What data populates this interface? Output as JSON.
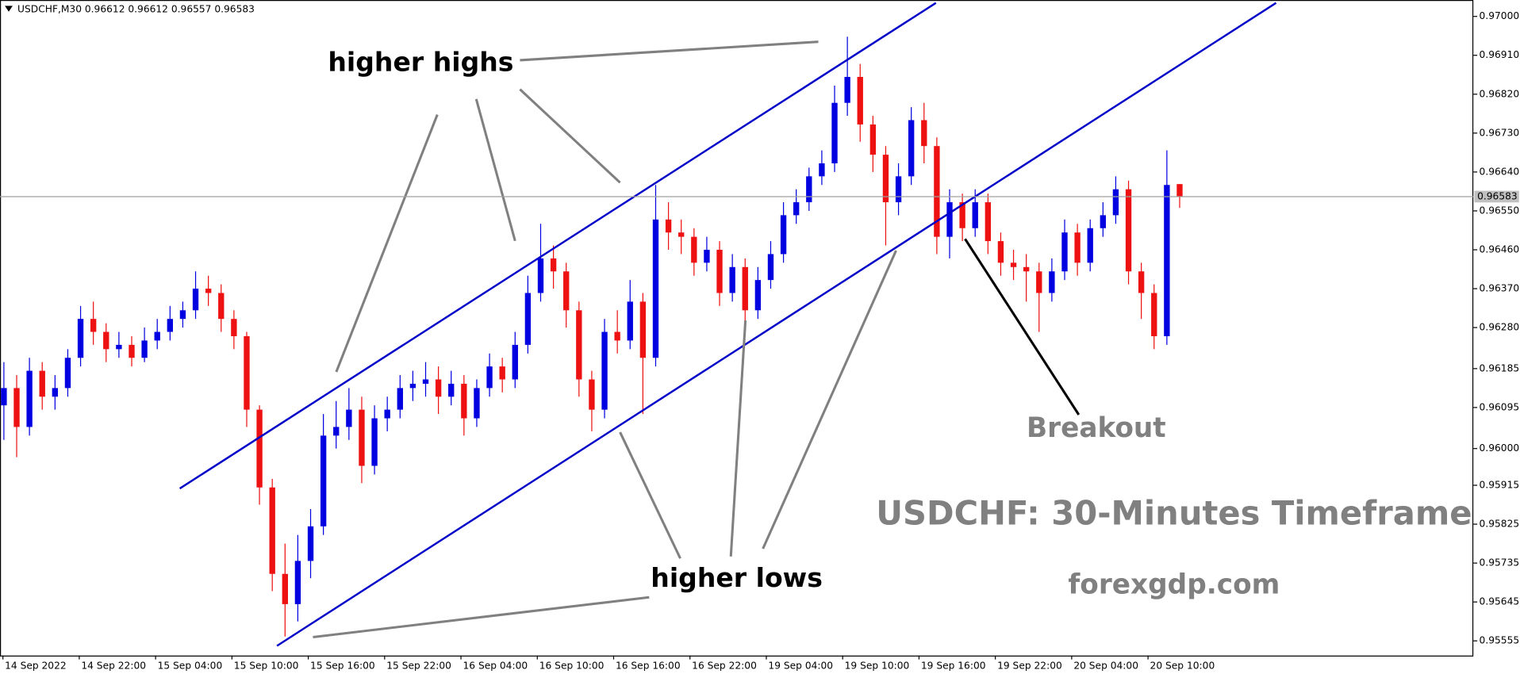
{
  "chart_data": {
    "type": "candlestick",
    "title": "USDCHF,M30  0.96612 0.96612 0.96557 0.96583",
    "up_color": "#0000e0",
    "down_color": "#ee1111",
    "ylim": [
      0.95521,
      0.97038
    ],
    "yticks": [
      {
        "value": 0.97,
        "label": "0.97000"
      },
      {
        "value": 0.9691,
        "label": "0.96910"
      },
      {
        "value": 0.9682,
        "label": "0.96820"
      },
      {
        "value": 0.9673,
        "label": "0.96730"
      },
      {
        "value": 0.9664,
        "label": "0.96640"
      },
      {
        "value": 0.9655,
        "label": "0.96550"
      },
      {
        "value": 0.9646,
        "label": "0.96460"
      },
      {
        "value": 0.9637,
        "label": "0.96370"
      },
      {
        "value": 0.9628,
        "label": "0.96280"
      },
      {
        "value": 0.96185,
        "label": "0.96185"
      },
      {
        "value": 0.96095,
        "label": "0.96095"
      },
      {
        "value": 0.96,
        "label": "0.96000"
      },
      {
        "value": 0.95915,
        "label": "0.95915"
      },
      {
        "value": 0.95825,
        "label": "0.95825"
      },
      {
        "value": 0.95735,
        "label": "0.95735"
      },
      {
        "value": 0.95645,
        "label": "0.95645"
      },
      {
        "value": 0.95555,
        "label": "0.95555"
      }
    ],
    "current_price": {
      "value": 0.96583,
      "label": "0.96583"
    },
    "xtick_labels": [
      "14 Sep 2022",
      "14 Sep 22:00",
      "15 Sep 04:00",
      "15 Sep 10:00",
      "15 Sep 16:00",
      "15 Sep 22:00",
      "16 Sep 04:00",
      "16 Sep 10:00",
      "16 Sep 16:00",
      "16 Sep 22:00",
      "19 Sep 04:00",
      "19 Sep 10:00",
      "19 Sep 16:00",
      "19 Sep 22:00",
      "20 Sep 04:00",
      "20 Sep 10:00"
    ],
    "candles": [
      [
        0.961,
        0.962,
        0.9602,
        0.9614
      ],
      [
        0.9614,
        0.9617,
        0.9598,
        0.9605
      ],
      [
        0.9605,
        0.9621,
        0.9603,
        0.9618
      ],
      [
        0.9618,
        0.962,
        0.9609,
        0.9612
      ],
      [
        0.9612,
        0.9617,
        0.9609,
        0.9614
      ],
      [
        0.9614,
        0.9623,
        0.9612,
        0.9621
      ],
      [
        0.9621,
        0.9633,
        0.9619,
        0.963
      ],
      [
        0.963,
        0.9634,
        0.9624,
        0.9627
      ],
      [
        0.9627,
        0.9629,
        0.962,
        0.9623
      ],
      [
        0.9623,
        0.9627,
        0.9621,
        0.9624
      ],
      [
        0.9624,
        0.9626,
        0.9619,
        0.9621
      ],
      [
        0.9621,
        0.9628,
        0.962,
        0.9625
      ],
      [
        0.9625,
        0.963,
        0.9623,
        0.9627
      ],
      [
        0.9627,
        0.9633,
        0.9625,
        0.963
      ],
      [
        0.963,
        0.9634,
        0.9628,
        0.9632
      ],
      [
        0.9632,
        0.9641,
        0.963,
        0.9637
      ],
      [
        0.9637,
        0.964,
        0.9633,
        0.9636
      ],
      [
        0.9636,
        0.9638,
        0.9627,
        0.963
      ],
      [
        0.963,
        0.9632,
        0.9623,
        0.9626
      ],
      [
        0.9626,
        0.9627,
        0.9605,
        0.9609
      ],
      [
        0.9609,
        0.961,
        0.9587,
        0.9591
      ],
      [
        0.9591,
        0.9593,
        0.9567,
        0.9571
      ],
      [
        0.9571,
        0.9578,
        0.95565,
        0.9564
      ],
      [
        0.9564,
        0.958,
        0.956,
        0.9574
      ],
      [
        0.9574,
        0.9586,
        0.957,
        0.9582
      ],
      [
        0.9582,
        0.9608,
        0.958,
        0.9603
      ],
      [
        0.9603,
        0.9611,
        0.96,
        0.9605
      ],
      [
        0.9605,
        0.9614,
        0.9602,
        0.9609
      ],
      [
        0.9609,
        0.9612,
        0.9592,
        0.9596
      ],
      [
        0.9596,
        0.961,
        0.9594,
        0.9607
      ],
      [
        0.9607,
        0.9612,
        0.9604,
        0.9609
      ],
      [
        0.9609,
        0.9617,
        0.9607,
        0.9614
      ],
      [
        0.9614,
        0.9618,
        0.9611,
        0.9615
      ],
      [
        0.9615,
        0.962,
        0.9612,
        0.9616
      ],
      [
        0.9616,
        0.9619,
        0.9608,
        0.9612
      ],
      [
        0.9612,
        0.9618,
        0.961,
        0.9615
      ],
      [
        0.9615,
        0.9617,
        0.9603,
        0.9607
      ],
      [
        0.9607,
        0.9616,
        0.9605,
        0.9614
      ],
      [
        0.9614,
        0.9622,
        0.9612,
        0.9619
      ],
      [
        0.9619,
        0.9621,
        0.9613,
        0.9616
      ],
      [
        0.9616,
        0.9627,
        0.9614,
        0.9624
      ],
      [
        0.9624,
        0.964,
        0.9622,
        0.9636
      ],
      [
        0.9636,
        0.9652,
        0.9634,
        0.9644
      ],
      [
        0.9644,
        0.9647,
        0.9637,
        0.9641
      ],
      [
        0.9641,
        0.9643,
        0.9628,
        0.9632
      ],
      [
        0.9632,
        0.9634,
        0.9612,
        0.9616
      ],
      [
        0.9616,
        0.9618,
        0.9604,
        0.9609
      ],
      [
        0.9609,
        0.963,
        0.9607,
        0.9627
      ],
      [
        0.9627,
        0.9632,
        0.9622,
        0.9625
      ],
      [
        0.9625,
        0.9639,
        0.9623,
        0.9634
      ],
      [
        0.9634,
        0.9636,
        0.9608,
        0.9621
      ],
      [
        0.9621,
        0.9661,
        0.9619,
        0.9653
      ],
      [
        0.9653,
        0.9657,
        0.9646,
        0.965
      ],
      [
        0.965,
        0.9653,
        0.9645,
        0.9649
      ],
      [
        0.9649,
        0.9651,
        0.964,
        0.9643
      ],
      [
        0.9643,
        0.9649,
        0.9641,
        0.9646
      ],
      [
        0.9646,
        0.9648,
        0.9633,
        0.9636
      ],
      [
        0.9636,
        0.9645,
        0.9634,
        0.9642
      ],
      [
        0.9642,
        0.9644,
        0.9627,
        0.9632
      ],
      [
        0.9632,
        0.9642,
        0.963,
        0.9639
      ],
      [
        0.9639,
        0.9648,
        0.9637,
        0.9645
      ],
      [
        0.9645,
        0.9657,
        0.9643,
        0.9654
      ],
      [
        0.9654,
        0.966,
        0.9652,
        0.9657
      ],
      [
        0.9657,
        0.9665,
        0.9655,
        0.9663
      ],
      [
        0.9663,
        0.9669,
        0.9661,
        0.9666
      ],
      [
        0.9666,
        0.9684,
        0.9664,
        0.968
      ],
      [
        0.968,
        0.96953,
        0.9677,
        0.9686
      ],
      [
        0.9686,
        0.9689,
        0.9671,
        0.9675
      ],
      [
        0.9675,
        0.9677,
        0.9664,
        0.9668
      ],
      [
        0.9668,
        0.967,
        0.9647,
        0.9657
      ],
      [
        0.9657,
        0.9666,
        0.9654,
        0.9663
      ],
      [
        0.9663,
        0.9679,
        0.9661,
        0.9676
      ],
      [
        0.9676,
        0.968,
        0.9666,
        0.967
      ],
      [
        0.967,
        0.9672,
        0.9645,
        0.9649
      ],
      [
        0.9649,
        0.966,
        0.9644,
        0.9657
      ],
      [
        0.9657,
        0.9659,
        0.9648,
        0.9651
      ],
      [
        0.9651,
        0.966,
        0.9649,
        0.9657
      ],
      [
        0.9657,
        0.9659,
        0.9645,
        0.9648
      ],
      [
        0.9648,
        0.965,
        0.964,
        0.9643
      ],
      [
        0.9643,
        0.9646,
        0.9639,
        0.9642
      ],
      [
        0.9642,
        0.9645,
        0.9634,
        0.9641
      ],
      [
        0.9641,
        0.9643,
        0.9627,
        0.9636
      ],
      [
        0.9636,
        0.9644,
        0.9634,
        0.9641
      ],
      [
        0.9641,
        0.9653,
        0.9639,
        0.965
      ],
      [
        0.965,
        0.9652,
        0.964,
        0.9643
      ],
      [
        0.9643,
        0.9653,
        0.9641,
        0.9651
      ],
      [
        0.9651,
        0.9657,
        0.9649,
        0.9654
      ],
      [
        0.9654,
        0.9663,
        0.9652,
        0.966
      ],
      [
        0.966,
        0.9662,
        0.9638,
        0.9641
      ],
      [
        0.9641,
        0.9643,
        0.963,
        0.9636
      ],
      [
        0.9636,
        0.9638,
        0.9623,
        0.9626
      ],
      [
        0.9626,
        0.9669,
        0.9624,
        0.9661
      ],
      [
        0.96612,
        0.96612,
        0.96557,
        0.96583
      ]
    ],
    "annotations": {
      "higher_highs": "higher highs",
      "higher_lows": "higher lows",
      "breakout": "Breakout",
      "timeframe": "USDCHF: 30-Minutes Timeframe",
      "site": "forexgdp.com"
    }
  }
}
